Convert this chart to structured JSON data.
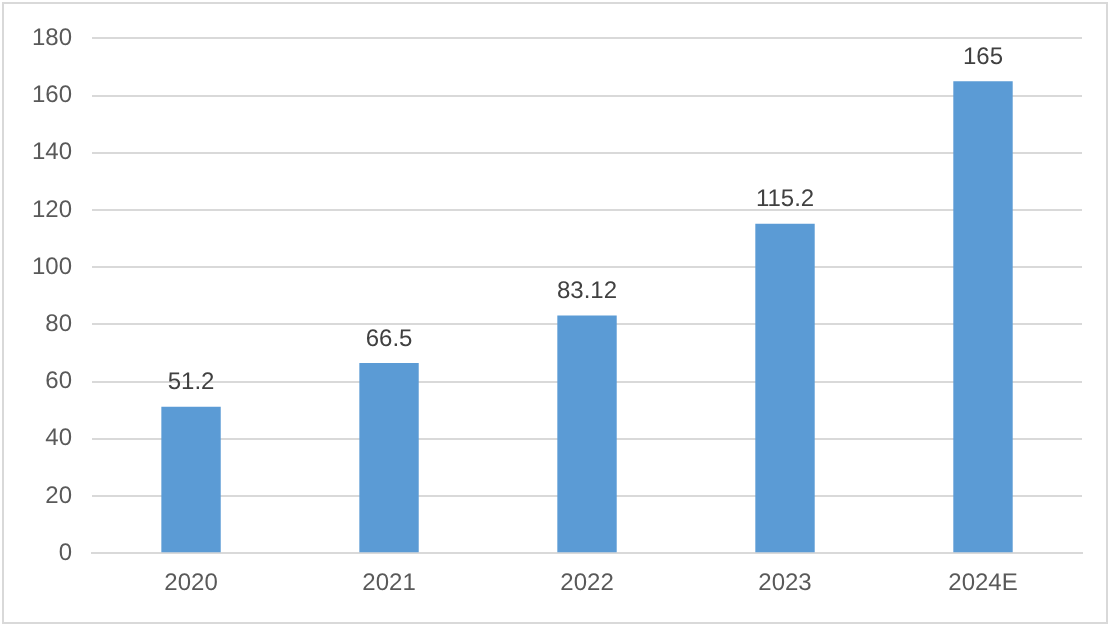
{
  "chart_data": {
    "type": "bar",
    "categories": [
      "2020",
      "2021",
      "2022",
      "2023",
      "2024E"
    ],
    "values": [
      51.2,
      66.5,
      83.12,
      115.2,
      165
    ],
    "color": "#5b9bd5",
    "ylim": [
      0,
      180
    ],
    "yticks": [
      0,
      20,
      40,
      60,
      80,
      100,
      120,
      140,
      160,
      180
    ],
    "grid": "y",
    "data_labels": true,
    "legend": false
  }
}
